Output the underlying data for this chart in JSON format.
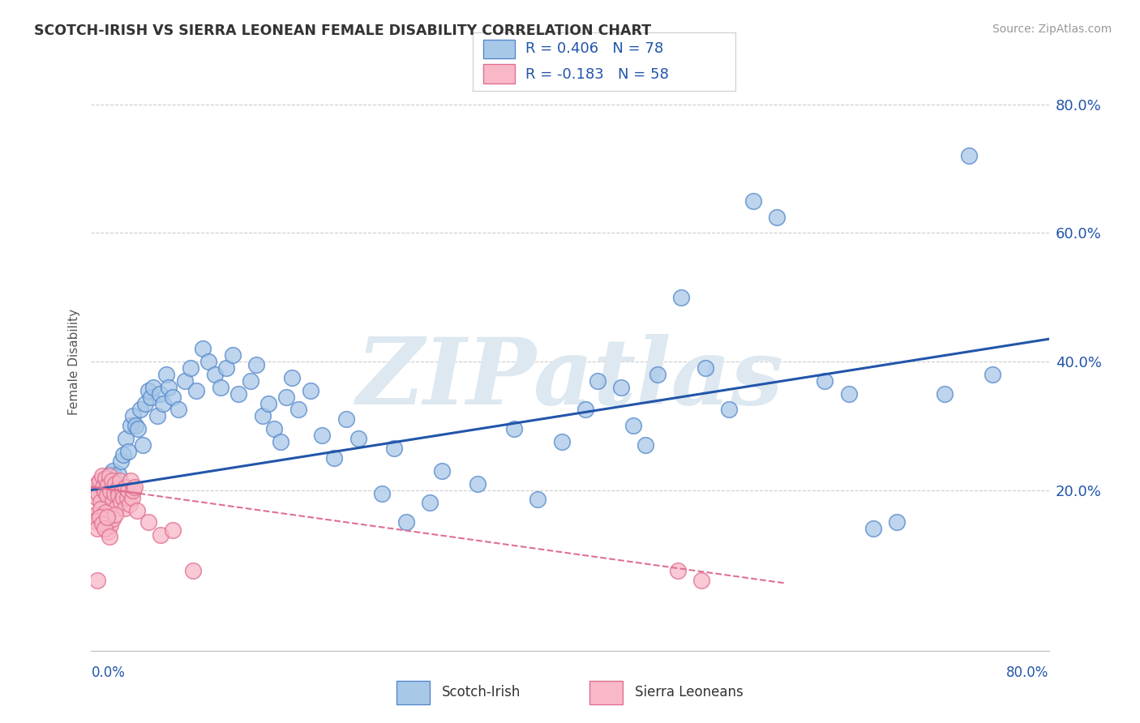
{
  "title": "SCOTCH-IRISH VS SIERRA LEONEAN FEMALE DISABILITY CORRELATION CHART",
  "source": "Source: ZipAtlas.com",
  "ylabel": "Female Disability",
  "xlim": [
    0.0,
    0.8
  ],
  "ylim": [
    -0.05,
    0.85
  ],
  "yticks": [
    0.0,
    0.2,
    0.4,
    0.6,
    0.8
  ],
  "blue_R": 0.406,
  "blue_N": 78,
  "pink_R": -0.183,
  "pink_N": 58,
  "blue_face_color": "#a8c8e8",
  "blue_edge_color": "#5588cc",
  "blue_line_color": "#2255aa",
  "pink_face_color": "#f8b8c8",
  "pink_edge_color": "#e07090",
  "pink_line_color": "#e07090",
  "watermark": "ZIPatlas",
  "watermark_color": "#dde8f0",
  "background_color": "#ffffff",
  "grid_color": "#cccccc",
  "blue_line_x0": 0.0,
  "blue_line_y0": 0.2,
  "blue_line_x1": 0.8,
  "blue_line_y1": 0.435,
  "pink_line_x0": 0.0,
  "pink_line_y0": 0.205,
  "pink_line_x1": 0.58,
  "pink_line_y1": 0.055,
  "blue_scatter": [
    [
      0.01,
      0.195
    ],
    [
      0.013,
      0.215
    ],
    [
      0.016,
      0.225
    ],
    [
      0.018,
      0.23
    ],
    [
      0.02,
      0.205
    ],
    [
      0.023,
      0.225
    ],
    [
      0.025,
      0.245
    ],
    [
      0.027,
      0.255
    ],
    [
      0.029,
      0.28
    ],
    [
      0.031,
      0.26
    ],
    [
      0.033,
      0.3
    ],
    [
      0.035,
      0.315
    ],
    [
      0.037,
      0.3
    ],
    [
      0.039,
      0.295
    ],
    [
      0.041,
      0.325
    ],
    [
      0.043,
      0.27
    ],
    [
      0.045,
      0.335
    ],
    [
      0.048,
      0.355
    ],
    [
      0.05,
      0.345
    ],
    [
      0.052,
      0.36
    ],
    [
      0.055,
      0.315
    ],
    [
      0.057,
      0.35
    ],
    [
      0.06,
      0.335
    ],
    [
      0.063,
      0.38
    ],
    [
      0.065,
      0.36
    ],
    [
      0.068,
      0.345
    ],
    [
      0.073,
      0.325
    ],
    [
      0.078,
      0.37
    ],
    [
      0.083,
      0.39
    ],
    [
      0.088,
      0.355
    ],
    [
      0.093,
      0.42
    ],
    [
      0.098,
      0.4
    ],
    [
      0.103,
      0.38
    ],
    [
      0.108,
      0.36
    ],
    [
      0.113,
      0.39
    ],
    [
      0.118,
      0.41
    ],
    [
      0.123,
      0.35
    ],
    [
      0.133,
      0.37
    ],
    [
      0.138,
      0.395
    ],
    [
      0.143,
      0.315
    ],
    [
      0.148,
      0.335
    ],
    [
      0.153,
      0.295
    ],
    [
      0.158,
      0.275
    ],
    [
      0.163,
      0.345
    ],
    [
      0.168,
      0.375
    ],
    [
      0.173,
      0.325
    ],
    [
      0.183,
      0.355
    ],
    [
      0.193,
      0.285
    ],
    [
      0.203,
      0.25
    ],
    [
      0.213,
      0.31
    ],
    [
      0.223,
      0.28
    ],
    [
      0.243,
      0.195
    ],
    [
      0.253,
      0.265
    ],
    [
      0.263,
      0.15
    ],
    [
      0.283,
      0.18
    ],
    [
      0.293,
      0.23
    ],
    [
      0.323,
      0.21
    ],
    [
      0.353,
      0.295
    ],
    [
      0.373,
      0.185
    ],
    [
      0.393,
      0.275
    ],
    [
      0.413,
      0.325
    ],
    [
      0.423,
      0.37
    ],
    [
      0.443,
      0.36
    ],
    [
      0.453,
      0.3
    ],
    [
      0.463,
      0.27
    ],
    [
      0.473,
      0.38
    ],
    [
      0.493,
      0.5
    ],
    [
      0.513,
      0.39
    ],
    [
      0.533,
      0.325
    ],
    [
      0.553,
      0.65
    ],
    [
      0.573,
      0.625
    ],
    [
      0.613,
      0.37
    ],
    [
      0.633,
      0.35
    ],
    [
      0.653,
      0.14
    ],
    [
      0.673,
      0.15
    ],
    [
      0.713,
      0.35
    ],
    [
      0.733,
      0.72
    ],
    [
      0.753,
      0.38
    ]
  ],
  "pink_scatter": [
    [
      0.003,
      0.2
    ],
    [
      0.004,
      0.19
    ],
    [
      0.005,
      0.21
    ],
    [
      0.006,
      0.195
    ],
    [
      0.007,
      0.215
    ],
    [
      0.008,
      0.182
    ],
    [
      0.009,
      0.222
    ],
    [
      0.01,
      0.205
    ],
    [
      0.011,
      0.198
    ],
    [
      0.012,
      0.218
    ],
    [
      0.013,
      0.192
    ],
    [
      0.014,
      0.208
    ],
    [
      0.015,
      0.222
    ],
    [
      0.016,
      0.198
    ],
    [
      0.017,
      0.215
    ],
    [
      0.018,
      0.182
    ],
    [
      0.019,
      0.195
    ],
    [
      0.02,
      0.21
    ],
    [
      0.021,
      0.172
    ],
    [
      0.022,
      0.202
    ],
    [
      0.023,
      0.192
    ],
    [
      0.024,
      0.215
    ],
    [
      0.025,
      0.182
    ],
    [
      0.026,
      0.2
    ],
    [
      0.027,
      0.188
    ],
    [
      0.028,
      0.172
    ],
    [
      0.029,
      0.205
    ],
    [
      0.03,
      0.188
    ],
    [
      0.031,
      0.2
    ],
    [
      0.032,
      0.178
    ],
    [
      0.033,
      0.215
    ],
    [
      0.034,
      0.188
    ],
    [
      0.035,
      0.2
    ],
    [
      0.036,
      0.205
    ],
    [
      0.004,
      0.162
    ],
    [
      0.006,
      0.155
    ],
    [
      0.008,
      0.17
    ],
    [
      0.01,
      0.16
    ],
    [
      0.012,
      0.165
    ],
    [
      0.014,
      0.135
    ],
    [
      0.016,
      0.145
    ],
    [
      0.018,
      0.155
    ],
    [
      0.02,
      0.162
    ],
    [
      0.003,
      0.152
    ],
    [
      0.005,
      0.14
    ],
    [
      0.007,
      0.158
    ],
    [
      0.009,
      0.148
    ],
    [
      0.011,
      0.14
    ],
    [
      0.013,
      0.158
    ],
    [
      0.015,
      0.128
    ],
    [
      0.005,
      0.06
    ],
    [
      0.038,
      0.168
    ],
    [
      0.048,
      0.15
    ],
    [
      0.058,
      0.13
    ],
    [
      0.068,
      0.138
    ],
    [
      0.085,
      0.075
    ],
    [
      0.49,
      0.075
    ],
    [
      0.51,
      0.06
    ]
  ]
}
